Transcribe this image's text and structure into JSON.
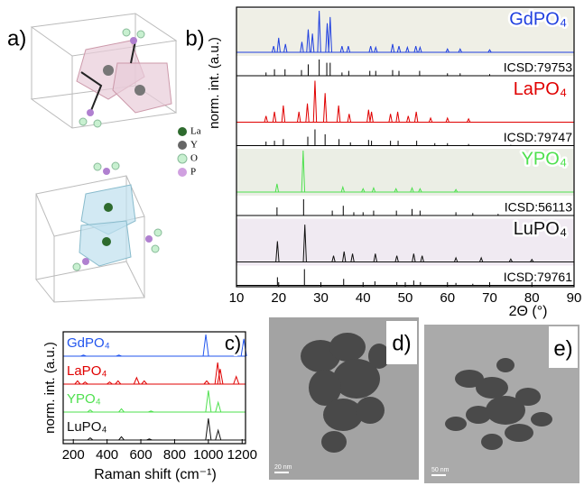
{
  "chart_data": [
    {
      "type": "line",
      "panel_label": "b)",
      "ylabel": "norm. int. (a.u.)",
      "xlabel": "2Θ (°)",
      "xlim": [
        10,
        90
      ],
      "xticks": [
        10,
        20,
        30,
        40,
        50,
        60,
        70,
        80,
        90
      ],
      "series": [
        {
          "name": "GdPO₄",
          "color": "#1f3fdf",
          "band_color": "#efefe6",
          "x": [
            18.8,
            20.0,
            21.6,
            25.5,
            27.0,
            28.0,
            29.6,
            31.5,
            32.2,
            35.0,
            36.5,
            41.8,
            43.0,
            47.0,
            48.5,
            50.5,
            52.5,
            53.5,
            60,
            63,
            70
          ],
          "values": [
            0.15,
            0.35,
            0.2,
            0.25,
            0.55,
            0.45,
            1.0,
            0.7,
            0.85,
            0.15,
            0.15,
            0.15,
            0.12,
            0.2,
            0.15,
            0.12,
            0.15,
            0.12,
            0.08,
            0.08,
            0.06
          ],
          "reference": {
            "name": "ICSD:79753",
            "color": "#000000",
            "x": [
              17,
              19,
              21.5,
              25.4,
              27,
              29.6,
              31.4,
              32.2,
              35,
              36.6,
              41.6,
              43,
              47,
              48.5,
              53.4,
              60,
              63,
              70
            ],
            "values": [
              0.2,
              0.4,
              0.4,
              0.35,
              0.7,
              1,
              0.8,
              0.8,
              0.2,
              0.3,
              0.3,
              0.3,
              0.35,
              0.3,
              0.3,
              0.15,
              0.15,
              0.1
            ]
          }
        },
        {
          "name": "LaPO₄",
          "color": "#e00000",
          "band_color": "#ffffff",
          "x": [
            17,
            19,
            21.1,
            24.8,
            26.8,
            28.6,
            31,
            34.2,
            36.7,
            41.3,
            42,
            46.5,
            48.2,
            50.7,
            52.6,
            56,
            60,
            65
          ],
          "values": [
            0.15,
            0.25,
            0.4,
            0.25,
            0.45,
            1.0,
            0.7,
            0.4,
            0.2,
            0.3,
            0.25,
            0.2,
            0.25,
            0.15,
            0.25,
            0.1,
            0.1,
            0.08
          ],
          "reference": {
            "name": "ICSD:79747",
            "color": "#000000",
            "x": [
              17,
              19,
              21.1,
              26.9,
              28.6,
              31,
              34.3,
              37,
              41.3,
              42,
              46.5,
              48.3,
              52.7,
              57,
              60,
              65,
              75
            ],
            "values": [
              0.25,
              0.3,
              0.4,
              0.55,
              1,
              0.7,
              0.4,
              0.2,
              0.35,
              0.3,
              0.3,
              0.3,
              0.3,
              0.15,
              0.15,
              0.1,
              0.05
            ]
          }
        },
        {
          "name": "YPO₄",
          "color": "#4ee04e",
          "band_color": "#ebeee5",
          "x": [
            19.6,
            25.8,
            35.2,
            40,
            42.5,
            47.8,
            51.6,
            53.5,
            62
          ],
          "values": [
            0.2,
            1.0,
            0.12,
            0.08,
            0.1,
            0.08,
            0.1,
            0.08,
            0.06
          ],
          "reference": {
            "name": "ICSD:56113",
            "color": "#000000",
            "x": [
              19.6,
              25.9,
              32.7,
              35.3,
              37.8,
              40,
              42.5,
              47.9,
              51.6,
              53.5,
              62,
              66,
              72
            ],
            "values": [
              0.5,
              1,
              0.3,
              0.6,
              0.2,
              0.2,
              0.3,
              0.3,
              0.4,
              0.3,
              0.2,
              0.15,
              0.1
            ]
          }
        },
        {
          "name": "LuPO₄",
          "color": "#111111",
          "band_color": "#f0eaf2",
          "x": [
            19.7,
            26.2,
            33,
            35.5,
            37.5,
            42.9,
            48.0,
            52,
            54,
            62,
            68,
            75,
            80
          ],
          "values": [
            0.5,
            0.9,
            0.15,
            0.25,
            0.2,
            0.2,
            0.15,
            0.2,
            0.15,
            0.1,
            0.1,
            0.07,
            0.06
          ],
          "reference": {
            "name": "ICSD:79761",
            "color": "#000000",
            "x": [
              19.7,
              26.1,
              35.4,
              42.8,
              48,
              52,
              53.6,
              62,
              66
            ],
            "values": [
              0.5,
              1,
              0.4,
              0.25,
              0.2,
              0.3,
              0.2,
              0.15,
              0.1
            ]
          }
        }
      ]
    },
    {
      "type": "line",
      "panel_label": "c)",
      "ylabel": "norm. int. (a.u.)",
      "xlabel": "Raman shift (cm⁻¹)",
      "xlim": [
        140,
        1220
      ],
      "xticks": [
        200,
        400,
        600,
        800,
        1000,
        1200
      ],
      "series": [
        {
          "name": "GdPO₄",
          "color": "#2255ee",
          "x": [
            260,
            470,
            985,
            1210
          ],
          "values": [
            0.05,
            0.05,
            1.0,
            0.8
          ]
        },
        {
          "name": "LaPO₄",
          "color": "#e00000",
          "x": [
            225,
            270,
            415,
            465,
            575,
            620,
            990,
            1055,
            1070,
            1165
          ],
          "values": [
            0.15,
            0.1,
            0.1,
            0.15,
            0.3,
            0.15,
            0.15,
            1.0,
            0.7,
            0.35
          ]
        },
        {
          "name": "YPO₄",
          "color": "#4ee04e",
          "x": [
            300,
            485,
            660,
            1000,
            1058
          ],
          "values": [
            0.1,
            0.15,
            0.05,
            1.0,
            0.45
          ]
        },
        {
          "name": "LuPO₄",
          "color": "#111111",
          "x": [
            300,
            485,
            650,
            1000,
            1058
          ],
          "values": [
            0.1,
            0.15,
            0.05,
            1.0,
            0.45
          ]
        }
      ]
    }
  ],
  "structure": {
    "panel_label": "a)",
    "legend": [
      "La",
      "Y",
      "O",
      "P"
    ]
  },
  "tem": [
    {
      "panel_label": "d)",
      "scale_bar": "20 nm"
    },
    {
      "panel_label": "e)",
      "scale_bar": "50 nm"
    }
  ]
}
